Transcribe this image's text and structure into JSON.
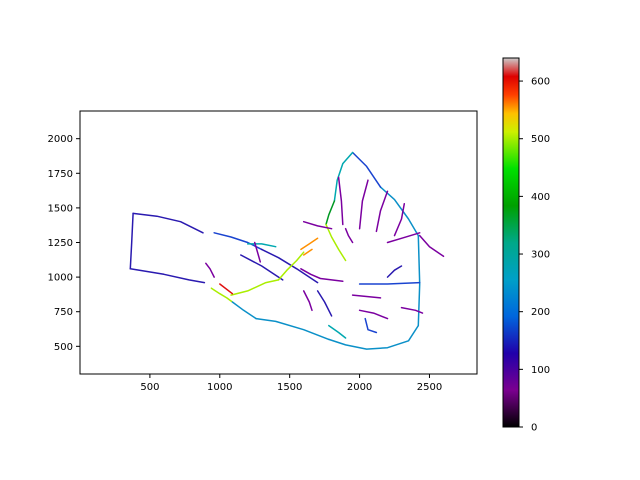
{
  "chart_data": {
    "type": "line",
    "title": "",
    "xlabel": "",
    "ylabel": "",
    "xlim": [
      0,
      2840
    ],
    "ylim": [
      300,
      2200
    ],
    "xticks": [
      500,
      1000,
      1500,
      2000,
      2500
    ],
    "yticks": [
      500,
      750,
      1000,
      1250,
      1500,
      1750,
      2000
    ],
    "grid": false,
    "colormap": "nipy_spectral",
    "colorbar": {
      "vmin": 0,
      "vmax": 640,
      "ticks": [
        0,
        100,
        200,
        300,
        400,
        500,
        600
      ]
    },
    "series": [
      {
        "color": "#2a1ab0",
        "x": [
          380,
          550,
          720,
          880
        ],
        "y": [
          1460,
          1440,
          1400,
          1320
        ]
      },
      {
        "color": "#2a1ab0",
        "x": [
          380,
          370,
          360
        ],
        "y": [
          1460,
          1250,
          1060
        ]
      },
      {
        "color": "#2a1ab0",
        "x": [
          360,
          600,
          780,
          890
        ],
        "y": [
          1060,
          1020,
          980,
          960
        ]
      },
      {
        "color": "#1a44d0",
        "x": [
          960,
          1080,
          1200,
          1300
        ],
        "y": [
          1320,
          1290,
          1250,
          1200
        ]
      },
      {
        "color": "#2a1ab0",
        "x": [
          1300,
          1420,
          1550,
          1700
        ],
        "y": [
          1200,
          1140,
          1060,
          960
        ]
      },
      {
        "color": "#2a1ab0",
        "x": [
          1150,
          1300,
          1450
        ],
        "y": [
          1160,
          1080,
          980
        ]
      },
      {
        "color": "#00a8b0",
        "x": [
          1200,
          1300,
          1400
        ],
        "y": [
          1240,
          1240,
          1220
        ]
      },
      {
        "color": "#aaee00",
        "x": [
          1080,
          1200,
          1330,
          1420
        ],
        "y": [
          870,
          900,
          960,
          980
        ]
      },
      {
        "color": "#aaee00",
        "x": [
          1420,
          1480,
          1550,
          1600
        ],
        "y": [
          980,
          1050,
          1120,
          1180
        ]
      },
      {
        "color": "#aaee00",
        "x": [
          940,
          1000,
          1050,
          1090
        ],
        "y": [
          920,
          880,
          850,
          820
        ]
      },
      {
        "color": "#e01010",
        "x": [
          1000,
          1090
        ],
        "y": [
          950,
          880
        ]
      },
      {
        "color": "#0b90c8",
        "x": [
          1090,
          1170,
          1260
        ],
        "y": [
          820,
          760,
          700
        ]
      },
      {
        "color": "#0b90c8",
        "x": [
          1260,
          1400,
          1600,
          1780
        ],
        "y": [
          700,
          680,
          620,
          550
        ]
      },
      {
        "color": "#0b90c8",
        "x": [
          1780,
          1900,
          2050,
          2200,
          2350,
          2420
        ],
        "y": [
          550,
          510,
          480,
          490,
          540,
          650
        ]
      },
      {
        "color": "#0b90c8",
        "x": [
          2420,
          2430,
          2420
        ],
        "y": [
          650,
          950,
          1300
        ]
      },
      {
        "color": "#1a44d0",
        "x": [
          2000,
          2200,
          2430
        ],
        "y": [
          950,
          950,
          960
        ]
      },
      {
        "color": "#0b90c8",
        "x": [
          2420,
          2350,
          2250,
          2150
        ],
        "y": [
          1300,
          1420,
          1560,
          1650
        ]
      },
      {
        "color": "#1a44d0",
        "x": [
          2150,
          2050,
          1950
        ],
        "y": [
          1650,
          1800,
          1900
        ]
      },
      {
        "color": "#00a8b0",
        "x": [
          1950,
          1880,
          1840,
          1820
        ],
        "y": [
          1900,
          1820,
          1700,
          1550
        ]
      },
      {
        "color": "#009922",
        "x": [
          1820,
          1780,
          1760
        ],
        "y": [
          1550,
          1450,
          1380
        ]
      },
      {
        "color": "#aaee00",
        "x": [
          1760,
          1800,
          1850,
          1900
        ],
        "y": [
          1380,
          1290,
          1200,
          1120
        ]
      },
      {
        "color": "#7b00a0",
        "x": [
          1850,
          1870,
          1880
        ],
        "y": [
          1720,
          1550,
          1380
        ]
      },
      {
        "color": "#7b00a0",
        "x": [
          2060,
          2020,
          2000
        ],
        "y": [
          1700,
          1550,
          1350
        ]
      },
      {
        "color": "#7b00a0",
        "x": [
          2200,
          2150,
          2120
        ],
        "y": [
          1620,
          1480,
          1330
        ]
      },
      {
        "color": "#7b00a0",
        "x": [
          2320,
          2300,
          2250
        ],
        "y": [
          1530,
          1420,
          1300
        ]
      },
      {
        "color": "#7b00a0",
        "x": [
          2430,
          2500,
          2600
        ],
        "y": [
          1300,
          1220,
          1150
        ]
      },
      {
        "color": "#7b00a0",
        "x": [
          2200,
          2300,
          2430
        ],
        "y": [
          1250,
          1280,
          1320
        ]
      },
      {
        "color": "#7b00a0",
        "x": [
          1580,
          1650,
          1720,
          1800,
          1880
        ],
        "y": [
          1060,
          1020,
          990,
          980,
          970
        ]
      },
      {
        "color": "#7b00a0",
        "x": [
          1600,
          1700,
          1800
        ],
        "y": [
          1400,
          1370,
          1350
        ]
      },
      {
        "color": "#7b00a0",
        "x": [
          2300,
          2400,
          2450
        ],
        "y": [
          780,
          760,
          740
        ]
      },
      {
        "color": "#7b00a0",
        "x": [
          1950,
          2050,
          2150
        ],
        "y": [
          870,
          860,
          850
        ]
      },
      {
        "color": "#7b00a0",
        "x": [
          2000,
          2100,
          2200
        ],
        "y": [
          760,
          740,
          700
        ]
      },
      {
        "color": "#ff9000",
        "x": [
          1580,
          1640,
          1700
        ],
        "y": [
          1200,
          1240,
          1280
        ]
      },
      {
        "color": "#ff9000",
        "x": [
          1600,
          1660
        ],
        "y": [
          1160,
          1200
        ]
      },
      {
        "color": "#2a1ab0",
        "x": [
          1700,
          1750,
          1800
        ],
        "y": [
          900,
          820,
          720
        ]
      },
      {
        "color": "#00a8b0",
        "x": [
          1780,
          1850,
          1900
        ],
        "y": [
          650,
          600,
          560
        ]
      },
      {
        "color": "#1a44d0",
        "x": [
          2040,
          2060,
          2120
        ],
        "y": [
          700,
          620,
          600
        ]
      },
      {
        "color": "#7b00a0",
        "x": [
          1600,
          1640,
          1660
        ],
        "y": [
          900,
          820,
          760
        ]
      },
      {
        "color": "#7b00a0",
        "x": [
          1900,
          1920,
          1950
        ],
        "y": [
          1350,
          1300,
          1250
        ]
      },
      {
        "color": "#2a1ab0",
        "x": [
          2200,
          2250,
          2300
        ],
        "y": [
          1000,
          1050,
          1080
        ]
      },
      {
        "color": "#7b00a0",
        "x": [
          900,
          930,
          960
        ],
        "y": [
          1100,
          1060,
          1000
        ]
      },
      {
        "color": "#7b00a0",
        "x": [
          1250,
          1270,
          1290
        ],
        "y": [
          1250,
          1180,
          1110
        ]
      }
    ]
  }
}
